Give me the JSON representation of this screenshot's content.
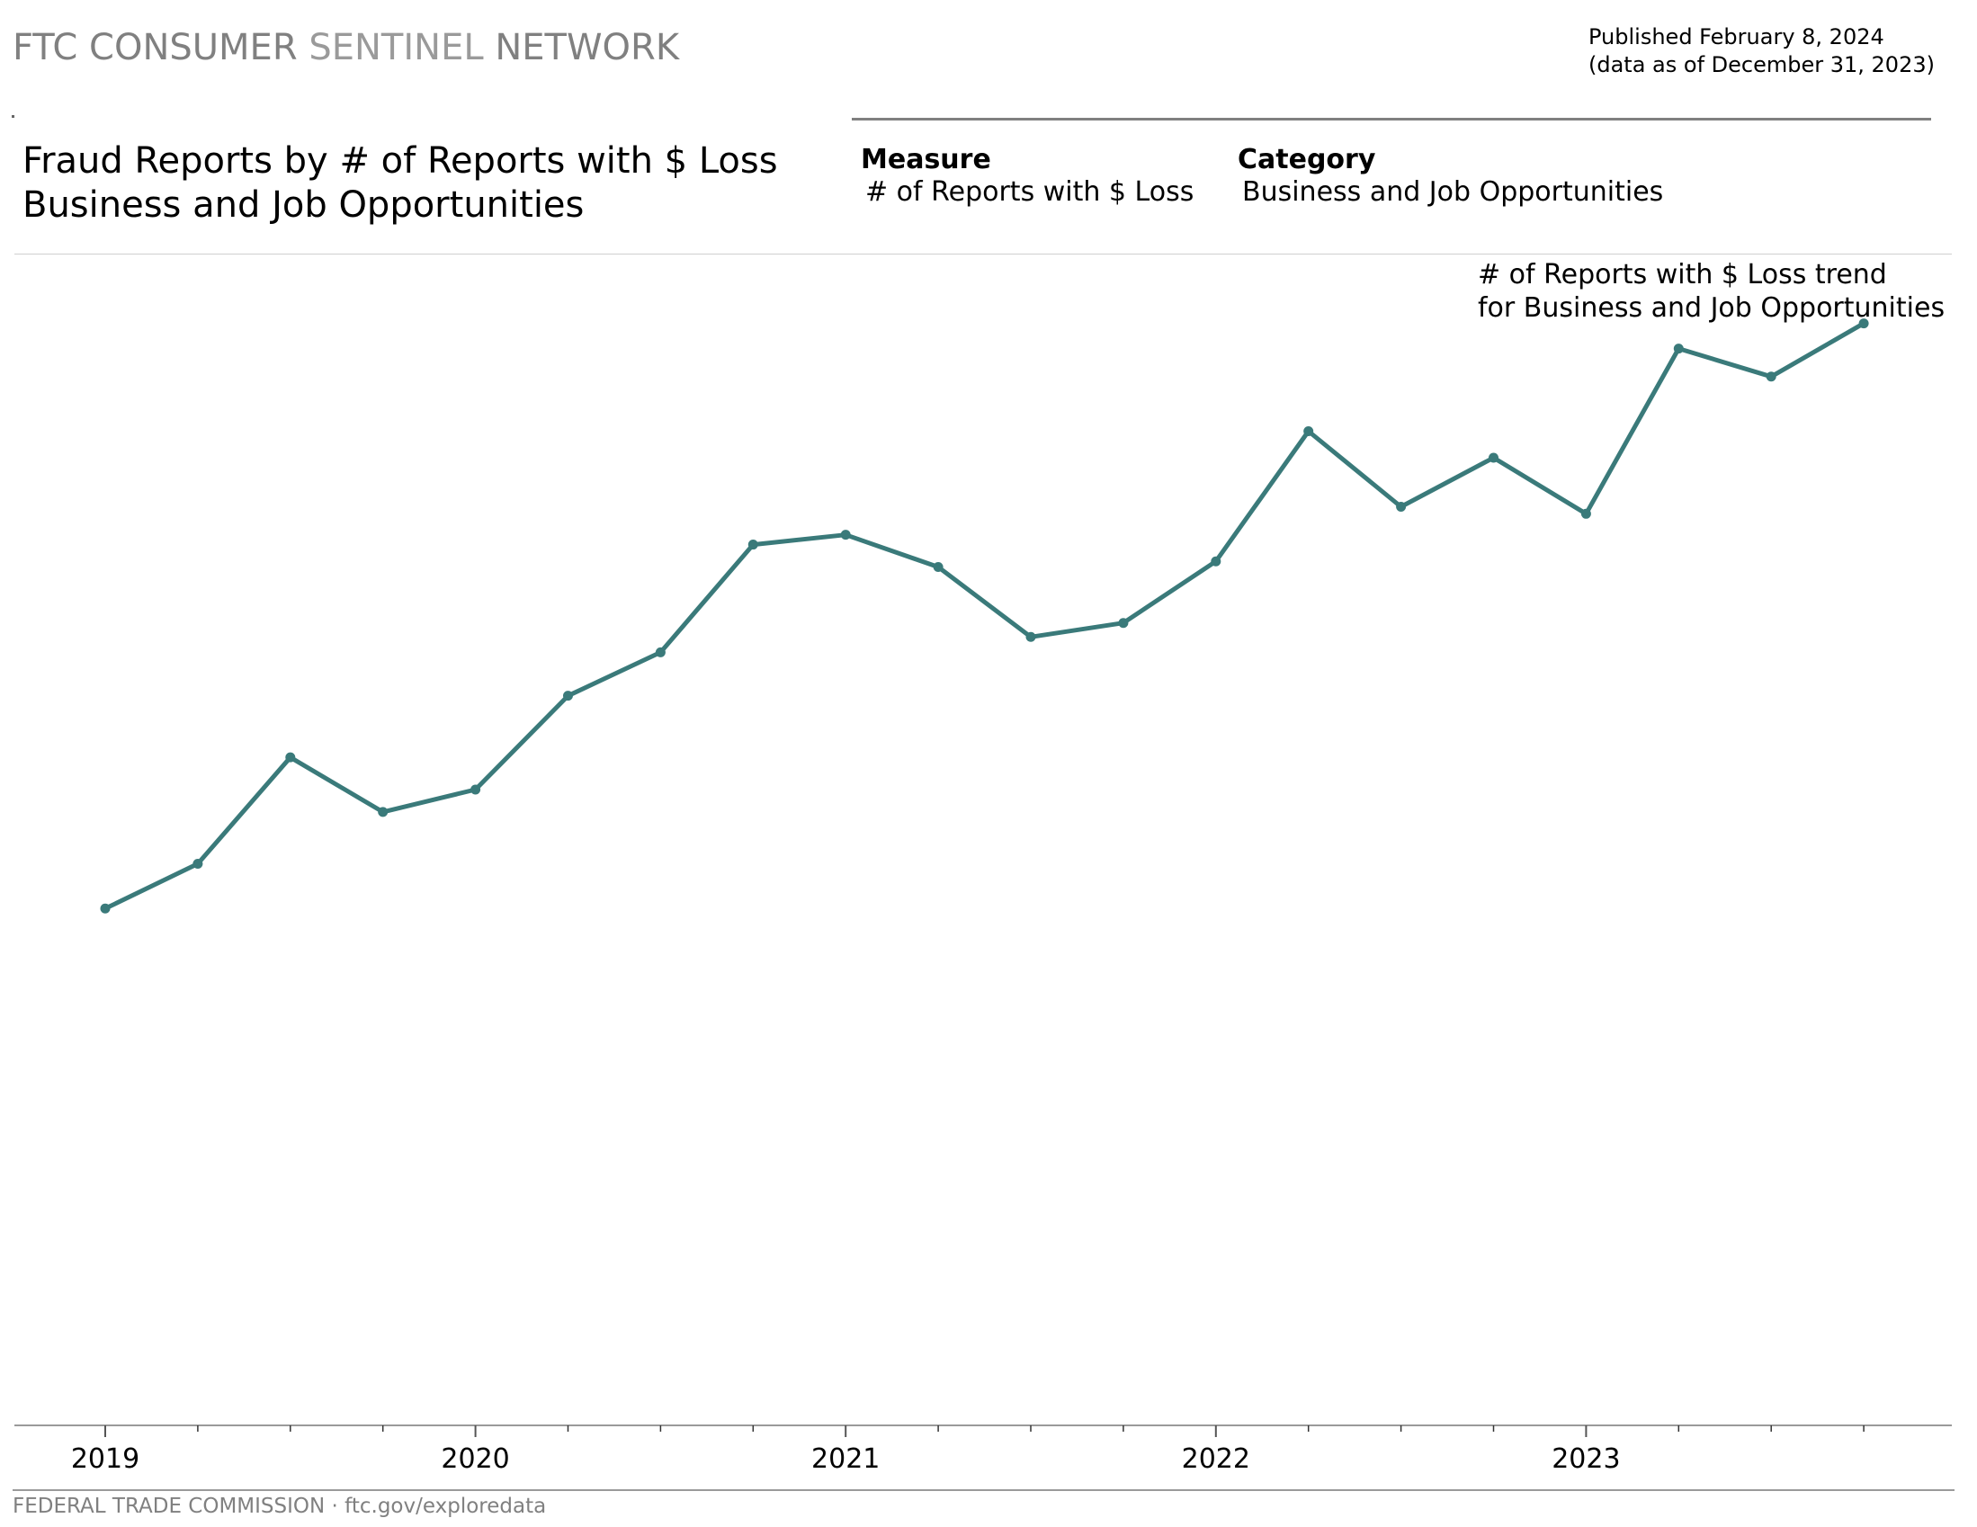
{
  "header": {
    "brand_part1": "FTC CONSUMER",
    "brand_part2": "SENTINEL",
    "brand_part3": "NETWORK",
    "published_line1": "Published February 8, 2024",
    "published_line2": "(data as of December 31, 2023)"
  },
  "title": {
    "line1": "Fraud Reports by # of Reports with $ Loss",
    "line2": "Business and Job Opportunities"
  },
  "filters": {
    "measure_label": "Measure",
    "measure_value": "# of Reports with $ Loss",
    "category_label": "Category",
    "category_value": "Business and Job Opportunities"
  },
  "annotation": {
    "line1": "# of Reports with $ Loss trend",
    "line2": "for Business and Job Opportunities"
  },
  "footer": {
    "text": "FEDERAL TRADE COMMISSION · ftc.gov/exploredata"
  },
  "colors": {
    "line": "#3a7a7a",
    "axis": "#9a9a9a",
    "brand_gray": "#808080"
  },
  "chart_data": {
    "type": "line",
    "title": "Fraud Reports by # of Reports with $ Loss",
    "subtitle": "Business and Job Opportunities",
    "xlabel": "",
    "ylabel": "",
    "y_axis_shown": false,
    "grid": false,
    "x_ticks": [
      "2019",
      "2020",
      "2021",
      "2022",
      "2023"
    ],
    "x": [
      "2019 Q1",
      "2019 Q2",
      "2019 Q3",
      "2019 Q4",
      "2020 Q1",
      "2020 Q2",
      "2020 Q3",
      "2020 Q4",
      "2021 Q1",
      "2021 Q2",
      "2021 Q3",
      "2021 Q4",
      "2022 Q1",
      "2022 Q2",
      "2022 Q3",
      "2022 Q4",
      "2023 Q1",
      "2023 Q2",
      "2023 Q3",
      "2023 Q4"
    ],
    "series": [
      {
        "values": [
          1016,
          1048,
          1124,
          1085,
          1101,
          1168,
          1199,
          1276,
          1283,
          1260,
          1210,
          1220,
          1264,
          1357,
          1303,
          1338,
          1298,
          1416,
          1396,
          1434
        ]
      }
    ],
    "ylim": [
      650,
      1480
    ]
  }
}
